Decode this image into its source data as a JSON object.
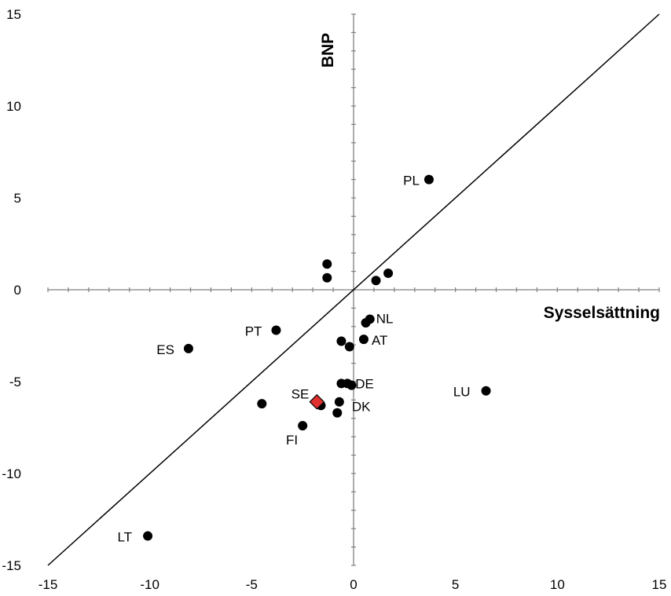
{
  "chart_data": {
    "type": "scatter",
    "title": "",
    "xlabel": "Sysselsättning",
    "ylabel": "BNP",
    "xlim": [
      -15,
      15
    ],
    "ylim": [
      -15,
      15
    ],
    "xticks": [
      -15,
      -10,
      -5,
      0,
      5,
      10,
      15
    ],
    "yticks": [
      -15,
      -10,
      -5,
      0,
      5,
      10,
      15
    ],
    "xtick_labels": [
      "-15",
      "-10",
      "-5",
      "0",
      "5",
      "10",
      "15"
    ],
    "ytick_labels": [
      "-15",
      "-10",
      "-5",
      "0",
      "5",
      "10",
      "15"
    ],
    "grid": false,
    "reference_line": {
      "from": [
        -15,
        -15
      ],
      "to": [
        15,
        15
      ]
    },
    "colors": {
      "point": "#000000",
      "highlight": "#e03030",
      "axis": "#808080"
    },
    "points": [
      {
        "label": "PL",
        "x": 3.7,
        "y": 6.0
      },
      {
        "label": "",
        "x": -1.3,
        "y": 1.4
      },
      {
        "label": "",
        "x": -1.3,
        "y": 0.65
      },
      {
        "label": "",
        "x": 1.7,
        "y": 0.9
      },
      {
        "label": "",
        "x": 1.1,
        "y": 0.5
      },
      {
        "label": "NL",
        "x": 0.8,
        "y": -1.6
      },
      {
        "label": "",
        "x": 0.6,
        "y": -1.8
      },
      {
        "label": "PT",
        "x": -3.8,
        "y": -2.2
      },
      {
        "label": "ES",
        "x": -8.1,
        "y": -3.2
      },
      {
        "label": "AT",
        "x": 0.5,
        "y": -2.7
      },
      {
        "label": "",
        "x": -0.6,
        "y": -2.8
      },
      {
        "label": "",
        "x": -0.2,
        "y": -3.1
      },
      {
        "label": "DE",
        "x": -0.3,
        "y": -5.1
      },
      {
        "label": "",
        "x": -0.6,
        "y": -5.1
      },
      {
        "label": "",
        "x": -0.1,
        "y": -5.2
      },
      {
        "label": "LU",
        "x": 6.5,
        "y": -5.5
      },
      {
        "label": "",
        "x": -4.5,
        "y": -6.2
      },
      {
        "label": "DK",
        "x": -0.7,
        "y": -6.1
      },
      {
        "label": "",
        "x": -1.6,
        "y": -6.3
      },
      {
        "label": "",
        "x": -0.8,
        "y": -6.7
      },
      {
        "label": "FI",
        "x": -2.5,
        "y": -7.4
      },
      {
        "label": "LT",
        "x": -10.1,
        "y": -13.4
      }
    ],
    "highlight": {
      "label": "SE",
      "x": -1.8,
      "y": -6.1,
      "marker": "diamond"
    }
  }
}
